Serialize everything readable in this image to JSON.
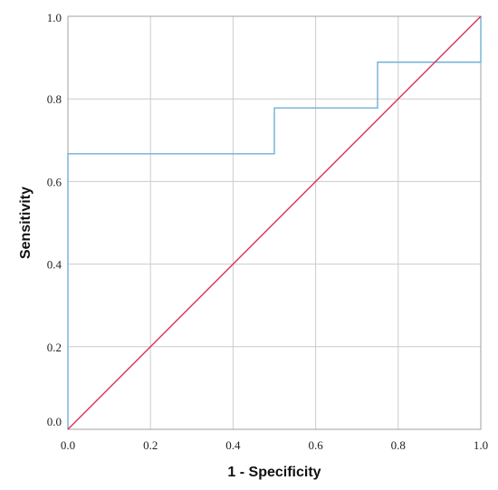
{
  "chart_data": {
    "type": "line",
    "xlabel": "1 - Specificity",
    "ylabel": "Sensitivity",
    "xlim": [
      0,
      1
    ],
    "ylim": [
      0,
      1
    ],
    "grid": true,
    "x_ticks": [
      "0.0",
      "0.2",
      "0.4",
      "0.6",
      "0.8",
      "1.0"
    ],
    "y_ticks": [
      "0.0",
      "0.2",
      "0.4",
      "0.6",
      "0.8",
      "1.0"
    ],
    "series": [
      {
        "color": "#6fb0d6",
        "x": [
          0,
          0,
          0.5,
          0.5,
          0.75,
          0.75,
          1.0,
          1.0
        ],
        "y": [
          0,
          0.667,
          0.667,
          0.778,
          0.778,
          0.889,
          0.889,
          1.0
        ]
      },
      {
        "color": "#d6345a",
        "x": [
          0,
          1
        ],
        "y": [
          0,
          1
        ]
      }
    ],
    "grid_color": "#cccccc",
    "frame_color": "#a0a0a0"
  }
}
